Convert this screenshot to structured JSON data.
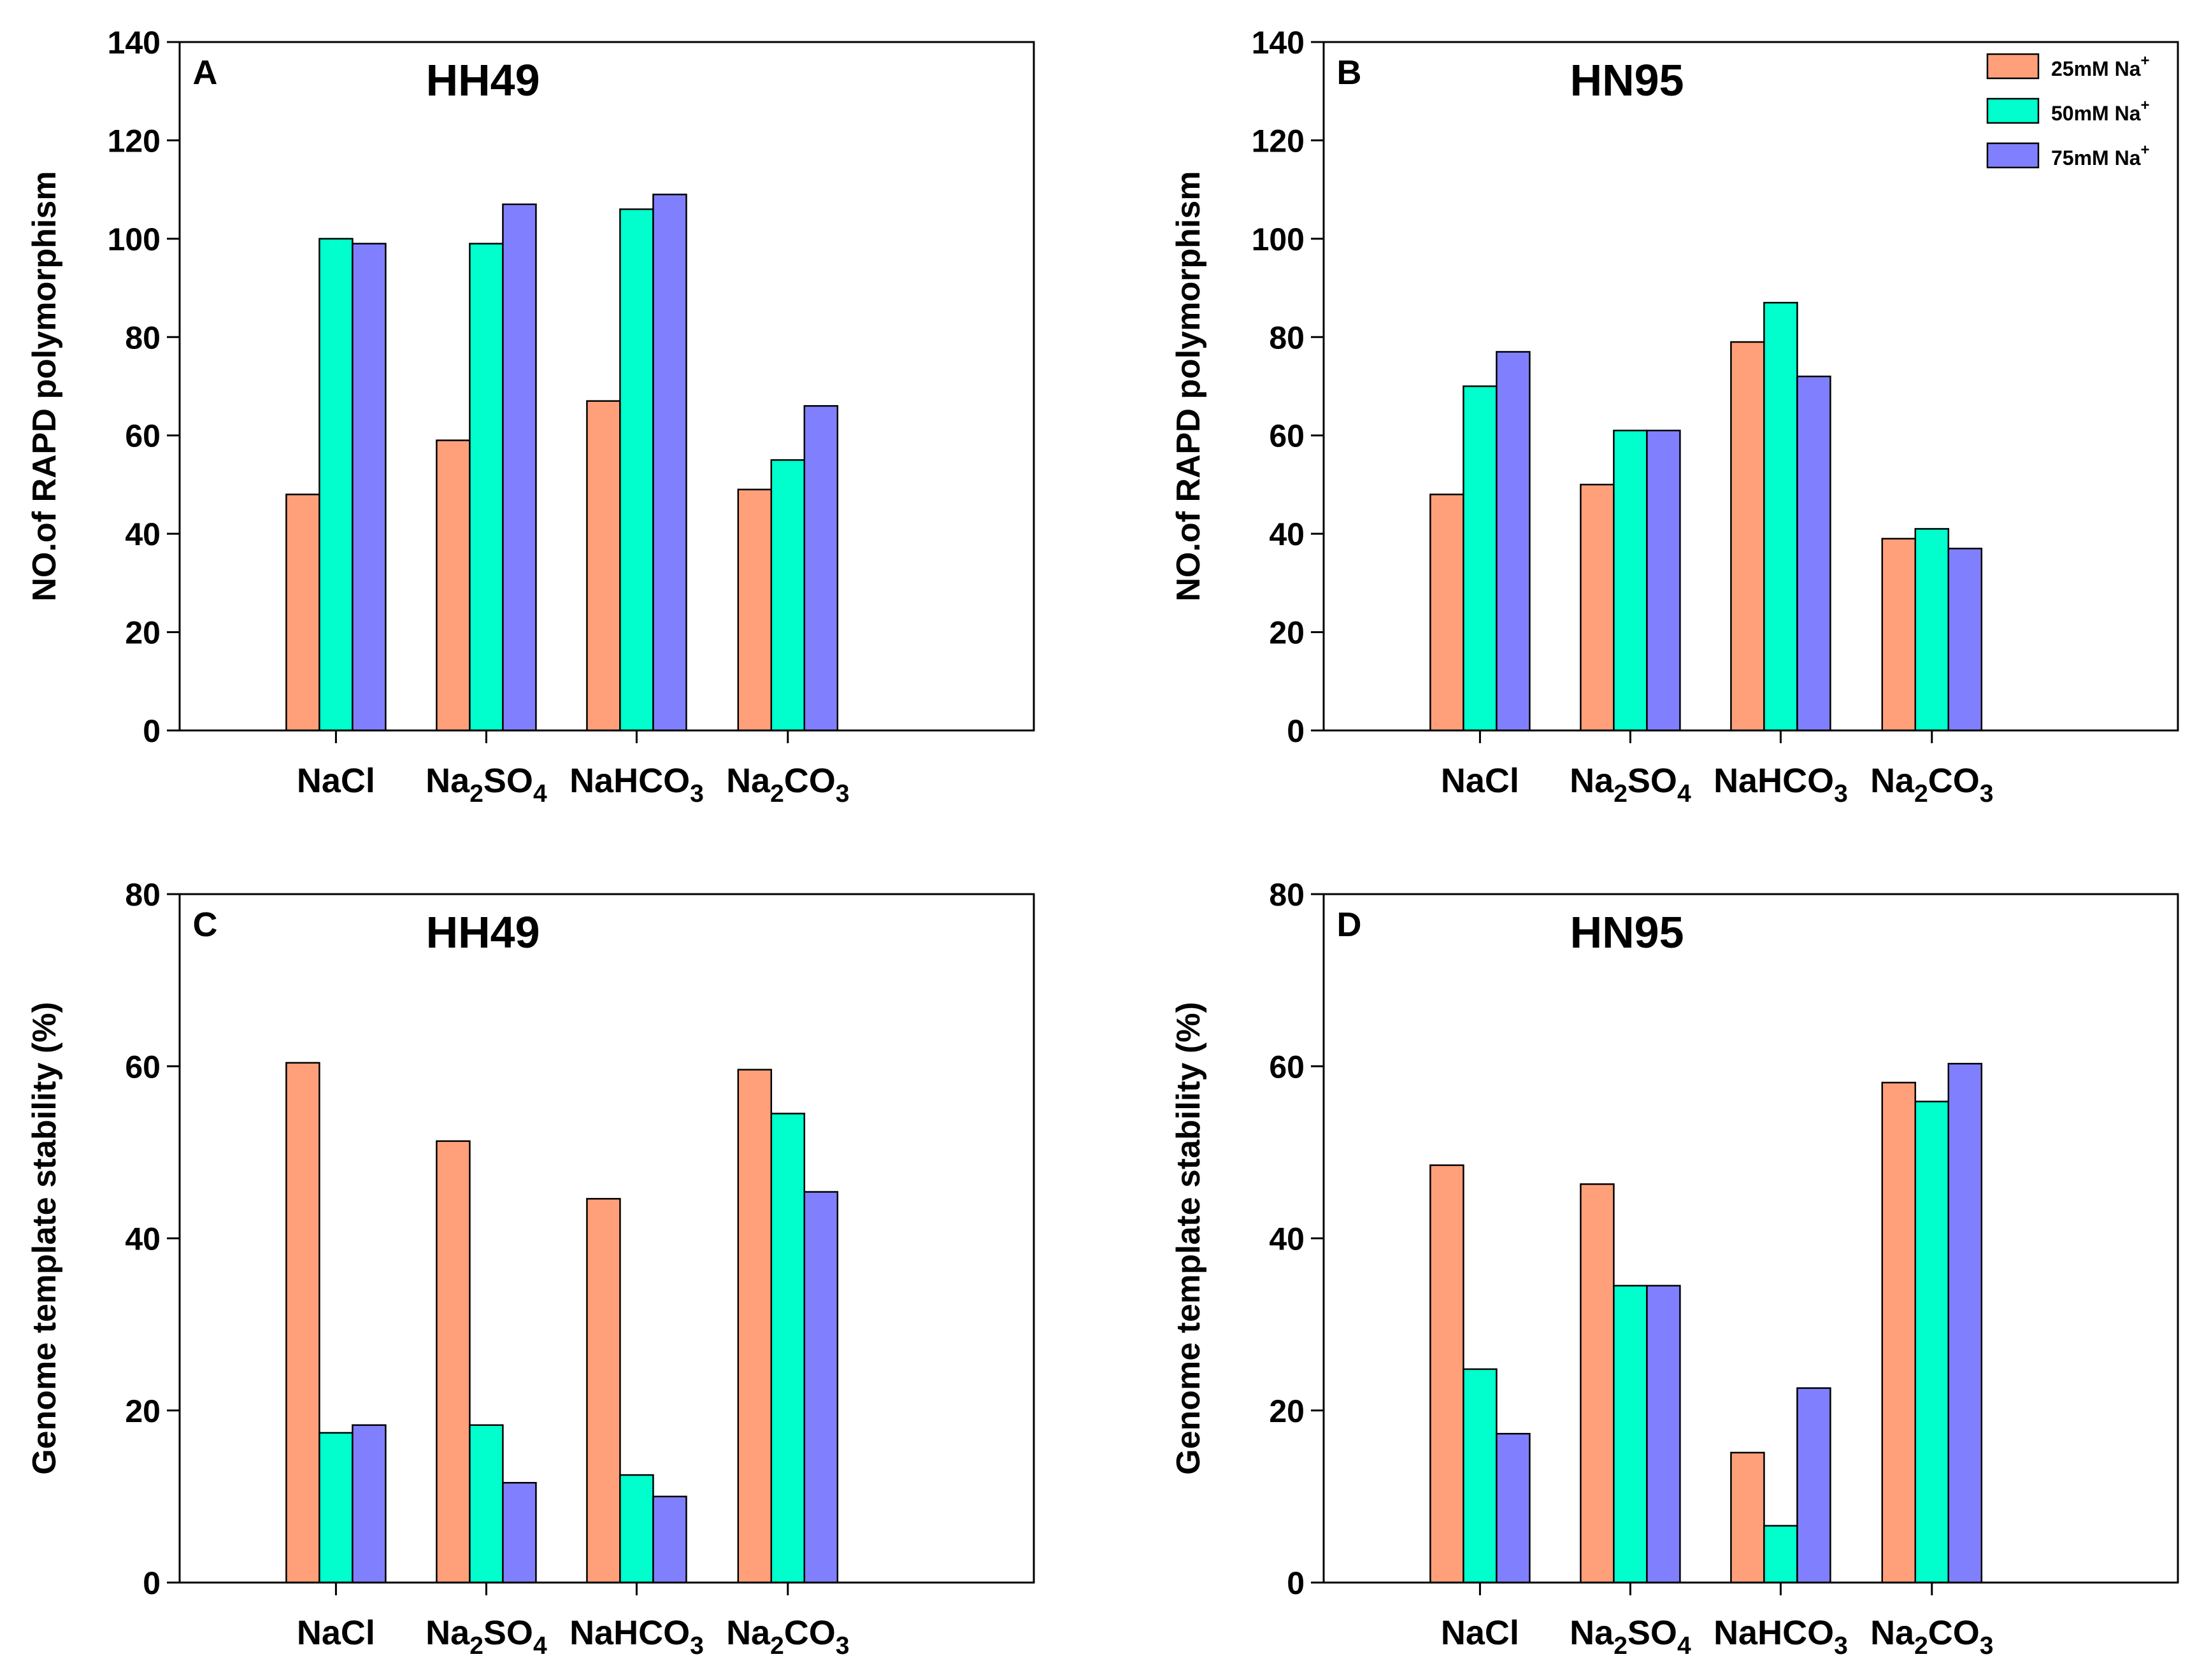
{
  "figure": {
    "legend": {
      "items": [
        {
          "label": "25mM Na",
          "sup": "+",
          "color": "#FFA07A"
        },
        {
          "label": "50mM Na",
          "sup": "+",
          "color": "#00FFCC"
        },
        {
          "label": "75mM Na",
          "sup": "+",
          "color": "#8080FF"
        }
      ]
    }
  },
  "chart_data": [
    {
      "panel": "A",
      "type": "bar",
      "title": "HH49",
      "ylabel": "NO.of RAPD polymorphism",
      "xlabel": "",
      "ylim": [
        0,
        140
      ],
      "yticks": [
        0,
        20,
        40,
        60,
        80,
        100,
        120,
        140
      ],
      "categories": [
        {
          "main": "NaCl",
          "parts": [
            [
              "NaCl",
              false
            ]
          ]
        },
        {
          "main": "Na2SO4",
          "parts": [
            [
              "Na",
              false
            ],
            [
              "2",
              true
            ],
            [
              "SO",
              false
            ],
            [
              "4",
              true
            ]
          ]
        },
        {
          "main": "NaHCO3",
          "parts": [
            [
              "NaHCO",
              false
            ],
            [
              "3",
              true
            ]
          ]
        },
        {
          "main": "Na2CO3",
          "parts": [
            [
              "Na",
              false
            ],
            [
              "2",
              true
            ],
            [
              "CO",
              false
            ],
            [
              "3",
              true
            ]
          ]
        }
      ],
      "series": [
        {
          "values": [
            48,
            59,
            67,
            49
          ],
          "color": "#FFA07A"
        },
        {
          "values": [
            100,
            99,
            106,
            55
          ],
          "color": "#00FFCC"
        },
        {
          "values": [
            99,
            107,
            109,
            66
          ],
          "color": "#8080FF"
        }
      ],
      "grid": false
    },
    {
      "panel": "B",
      "type": "bar",
      "title": "HN95",
      "ylabel": "NO.of RAPD polymorphism",
      "xlabel": "",
      "ylim": [
        0,
        140
      ],
      "yticks": [
        0,
        20,
        40,
        60,
        80,
        100,
        120,
        140
      ],
      "categories": [
        {
          "main": "NaCl",
          "parts": [
            [
              "NaCl",
              false
            ]
          ]
        },
        {
          "main": "Na2SO4",
          "parts": [
            [
              "Na",
              false
            ],
            [
              "2",
              true
            ],
            [
              "SO",
              false
            ],
            [
              "4",
              true
            ]
          ]
        },
        {
          "main": "NaHCO3",
          "parts": [
            [
              "NaHCO",
              false
            ],
            [
              "3",
              true
            ]
          ]
        },
        {
          "main": "Na2CO3",
          "parts": [
            [
              "Na",
              false
            ],
            [
              "2",
              true
            ],
            [
              "CO",
              false
            ],
            [
              "3",
              true
            ]
          ]
        }
      ],
      "series": [
        {
          "name": "25mM Na+",
          "values": [
            48,
            50,
            79,
            39
          ],
          "color": "#FFA07A"
        },
        {
          "name": "50mM Na+",
          "values": [
            70,
            61,
            87,
            41
          ],
          "color": "#00FFCC"
        },
        {
          "name": "75mM Na+",
          "values": [
            77,
            61,
            72,
            37
          ],
          "color": "#8080FF"
        }
      ],
      "legend": "top-right",
      "grid": false
    },
    {
      "panel": "C",
      "type": "bar",
      "title": "HH49",
      "ylabel": "Genome template stability (%)",
      "xlabel": "",
      "ylim": [
        0,
        80
      ],
      "yticks": [
        0,
        20,
        40,
        60,
        80
      ],
      "categories": [
        {
          "main": "NaCl",
          "parts": [
            [
              "NaCl",
              false
            ]
          ]
        },
        {
          "main": "Na2SO4",
          "parts": [
            [
              "Na",
              false
            ],
            [
              "2",
              true
            ],
            [
              "SO",
              false
            ],
            [
              "4",
              true
            ]
          ]
        },
        {
          "main": "NaHCO3",
          "parts": [
            [
              "NaHCO",
              false
            ],
            [
              "3",
              true
            ]
          ]
        },
        {
          "main": "Na2CO3",
          "parts": [
            [
              "Na",
              false
            ],
            [
              "2",
              true
            ],
            [
              "CO",
              false
            ],
            [
              "3",
              true
            ]
          ]
        }
      ],
      "series": [
        {
          "values": [
            60.4,
            51.3,
            44.6,
            59.6
          ],
          "color": "#FFA07A"
        },
        {
          "values": [
            17.4,
            18.3,
            12.5,
            54.5
          ],
          "color": "#00FFCC"
        },
        {
          "values": [
            18.3,
            11.6,
            10.0,
            45.4
          ],
          "color": "#8080FF"
        }
      ],
      "grid": false
    },
    {
      "panel": "D",
      "type": "bar",
      "title": "HN95",
      "ylabel": "Genome template stability (%)",
      "xlabel": "",
      "ylim": [
        0,
        80
      ],
      "yticks": [
        0,
        20,
        40,
        60,
        80
      ],
      "categories": [
        {
          "main": "NaCl",
          "parts": [
            [
              "NaCl",
              false
            ]
          ]
        },
        {
          "main": "Na2SO4",
          "parts": [
            [
              "Na",
              false
            ],
            [
              "2",
              true
            ],
            [
              "SO",
              false
            ],
            [
              "4",
              true
            ]
          ]
        },
        {
          "main": "NaHCO3",
          "parts": [
            [
              "NaHCO",
              false
            ],
            [
              "3",
              true
            ]
          ]
        },
        {
          "main": "Na2CO3",
          "parts": [
            [
              "Na",
              false
            ],
            [
              "2",
              true
            ],
            [
              "CO",
              false
            ],
            [
              "3",
              true
            ]
          ]
        }
      ],
      "series": [
        {
          "values": [
            48.5,
            46.3,
            15.1,
            58.1
          ],
          "color": "#FFA07A"
        },
        {
          "values": [
            24.8,
            34.5,
            6.6,
            55.9
          ],
          "color": "#00FFCC"
        },
        {
          "values": [
            17.3,
            34.5,
            22.6,
            60.3
          ],
          "color": "#8080FF"
        }
      ],
      "grid": false
    }
  ]
}
